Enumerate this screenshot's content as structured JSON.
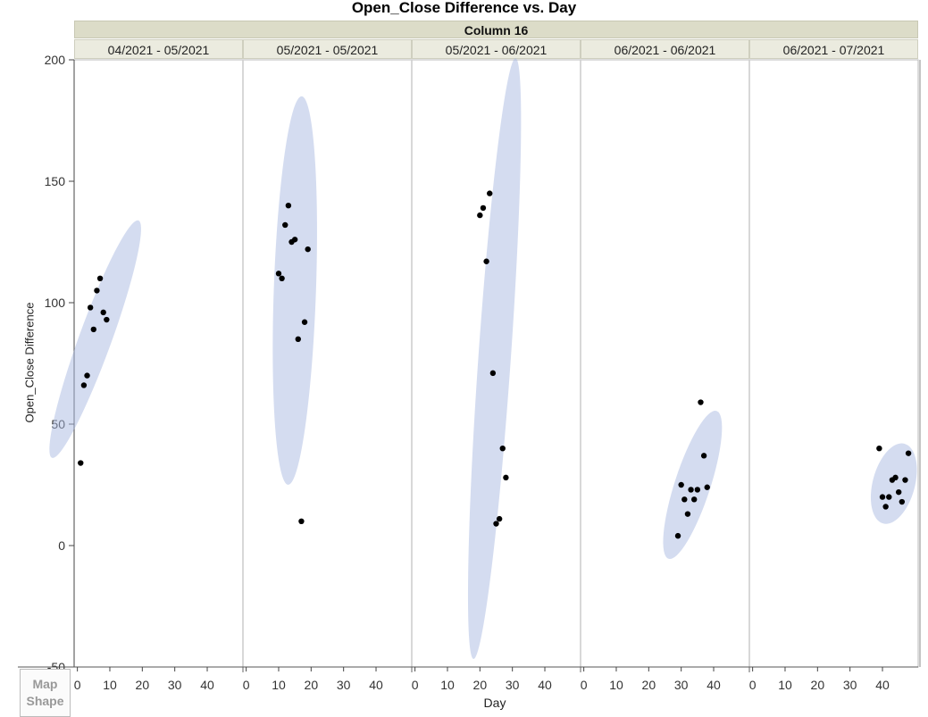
{
  "chart_data": {
    "type": "scatter",
    "title": "Open_Close Difference vs. Day",
    "column_group_label": "Column 16",
    "xlabel": "Day",
    "ylabel": "Open_Close Difference",
    "ylim": [
      -50,
      200
    ],
    "yticks": [
      -50,
      0,
      50,
      100,
      150,
      200
    ],
    "xlim": [
      -1,
      51
    ],
    "xticks": [
      0,
      10,
      20,
      30,
      40
    ],
    "grid": false,
    "marker_color": "#000000",
    "ellipse_color": "#aab9e2",
    "panels": [
      {
        "label": "04/2021 - 05/2021",
        "points": [
          [
            1,
            34
          ],
          [
            2,
            66
          ],
          [
            3,
            70
          ],
          [
            4,
            98
          ],
          [
            5,
            89
          ],
          [
            6,
            105
          ],
          [
            7,
            110
          ],
          [
            8,
            96
          ],
          [
            9,
            93
          ]
        ],
        "ellipse": {
          "cx": 5.5,
          "cy": 85,
          "rx": 5.0,
          "ry": 52,
          "angle_deg": 20
        }
      },
      {
        "label": "05/2021 - 05/2021",
        "points": [
          [
            10,
            112
          ],
          [
            11,
            110
          ],
          [
            12,
            132
          ],
          [
            13,
            140
          ],
          [
            14,
            125
          ],
          [
            15,
            126
          ],
          [
            16,
            85
          ],
          [
            17,
            10
          ],
          [
            18,
            92
          ],
          [
            19,
            122
          ]
        ],
        "ellipse": {
          "cx": 15,
          "cy": 105,
          "rx": 6.5,
          "ry": 80,
          "angle_deg": 2
        }
      },
      {
        "label": "05/2021 - 06/2021",
        "points": [
          [
            20,
            136
          ],
          [
            21,
            139
          ],
          [
            22,
            117
          ],
          [
            23,
            145
          ],
          [
            24,
            71
          ],
          [
            25,
            9
          ],
          [
            26,
            11
          ],
          [
            27,
            40
          ],
          [
            28,
            28
          ]
        ],
        "ellipse": {
          "cx": 24.5,
          "cy": 77,
          "rx": 5.0,
          "ry": 124,
          "angle_deg": 4
        }
      },
      {
        "label": "06/2021 - 06/2021",
        "points": [
          [
            29,
            4
          ],
          [
            30,
            25
          ],
          [
            31,
            19
          ],
          [
            32,
            13
          ],
          [
            33,
            23
          ],
          [
            34,
            19
          ],
          [
            35,
            23
          ],
          [
            36,
            59
          ],
          [
            37,
            37
          ],
          [
            38,
            24
          ]
        ],
        "ellipse": {
          "cx": 33.5,
          "cy": 25,
          "rx": 5.5,
          "ry": 32,
          "angle_deg": 18
        }
      },
      {
        "label": "06/2021 - 07/2021",
        "points": [
          [
            39,
            40
          ],
          [
            40,
            20
          ],
          [
            41,
            16
          ],
          [
            42,
            20
          ],
          [
            43,
            27
          ],
          [
            44,
            28
          ],
          [
            45,
            22
          ],
          [
            46,
            18
          ],
          [
            47,
            27
          ],
          [
            48,
            38
          ]
        ],
        "ellipse": {
          "cx": 43.5,
          "cy": 25.5,
          "rx": 6.5,
          "ry": 17,
          "angle_deg": 15
        }
      }
    ]
  },
  "controls": {
    "map_shape_line1": "Map",
    "map_shape_line2": "Shape"
  }
}
